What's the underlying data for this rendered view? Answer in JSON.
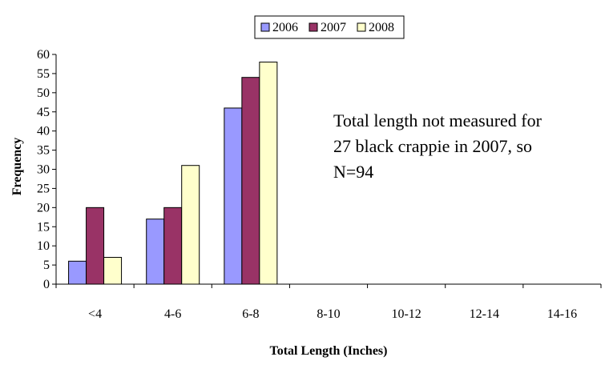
{
  "chart_data": {
    "type": "bar",
    "title": "",
    "xlabel": "Total Length (Inches)",
    "ylabel": "Frequency",
    "ylim": [
      0,
      60
    ],
    "yticks": [
      0,
      5,
      10,
      15,
      20,
      25,
      30,
      35,
      40,
      45,
      50,
      55,
      60
    ],
    "grid": false,
    "legend_position": "top",
    "categories": [
      "<4",
      "4-6",
      "6-8",
      "8-10",
      "10-12",
      "12-14",
      "14-16"
    ],
    "series": [
      {
        "name": "2006",
        "color": "#9999ff",
        "values": [
          6,
          17,
          46,
          0,
          0,
          0,
          0
        ]
      },
      {
        "name": "2007",
        "color": "#993366",
        "values": [
          20,
          20,
          54,
          0,
          0,
          0,
          0
        ]
      },
      {
        "name": "2008",
        "color": "#ffffcc",
        "values": [
          7,
          31,
          58,
          0,
          0,
          0,
          0
        ]
      }
    ],
    "annotation": [
      "Total length not measured for",
      "27 black crappie in 2007, so",
      "N=94"
    ]
  }
}
